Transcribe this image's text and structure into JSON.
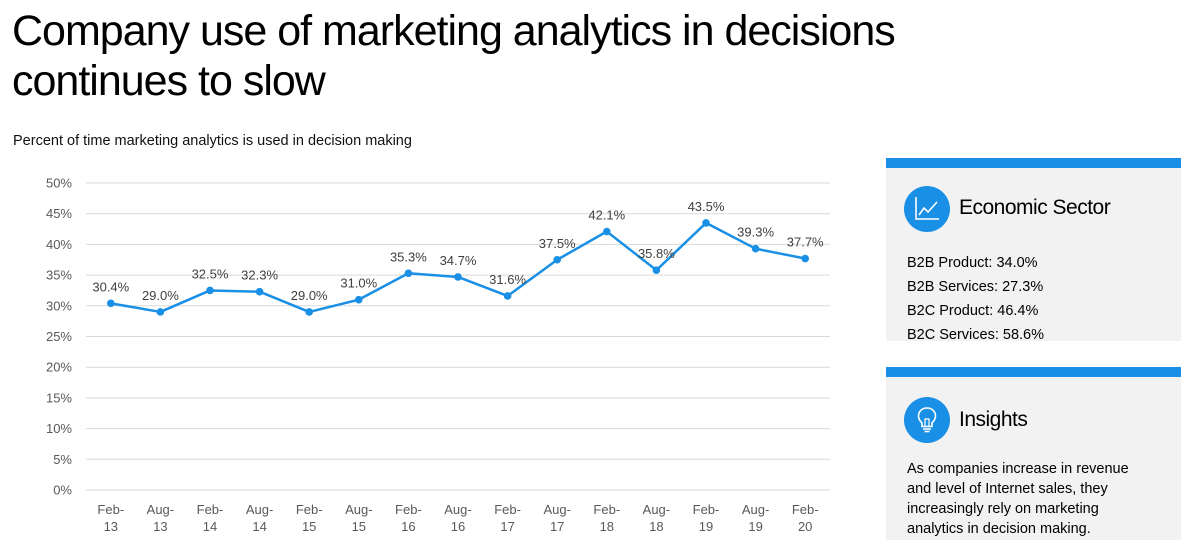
{
  "title": "Company use of marketing analytics in decisions continues to slow",
  "subtitle": "Percent of time marketing analytics is used in decision making",
  "chart_data": {
    "type": "line",
    "title": "Company use of marketing analytics in decisions continues to slow",
    "subtitle": "Percent of time marketing analytics is used in decision making",
    "xlabel": "",
    "ylabel": "",
    "categories": [
      [
        "Feb-",
        "13"
      ],
      [
        "Aug-",
        "13"
      ],
      [
        "Feb-",
        "14"
      ],
      [
        "Aug-",
        "14"
      ],
      [
        "Feb-",
        "15"
      ],
      [
        "Aug-",
        "15"
      ],
      [
        "Feb-",
        "16"
      ],
      [
        "Aug-",
        "16"
      ],
      [
        "Feb-",
        "17"
      ],
      [
        "Aug-",
        "17"
      ],
      [
        "Feb-",
        "18"
      ],
      [
        "Aug-",
        "18"
      ],
      [
        "Feb-",
        "19"
      ],
      [
        "Aug-",
        "19"
      ],
      [
        "Feb-",
        "20"
      ]
    ],
    "series": [
      {
        "values": [
          30.4,
          29.0,
          32.5,
          32.3,
          29.0,
          31.0,
          35.3,
          34.7,
          31.6,
          37.5,
          42.1,
          35.8,
          43.5,
          39.3,
          37.7
        ],
        "labels": [
          "30.4%",
          "29.0%",
          "32.5%",
          "32.3%",
          "29.0%",
          "31.0%",
          "35.3%",
          "34.7%",
          "31.6%",
          "37.5%",
          "42.1%",
          "35.8%",
          "43.5%",
          "39.3%",
          "37.7%"
        ],
        "color": "#1a8fe6"
      }
    ],
    "ylim": [
      0,
      50
    ],
    "yticks": [
      "0%",
      "5%",
      "10%",
      "15%",
      "20%",
      "25%",
      "30%",
      "35%",
      "40%",
      "45%",
      "50%"
    ],
    "grid": true,
    "legend": "none"
  },
  "panels": {
    "sector": {
      "heading": "Economic Sector",
      "icon": "line-chart-icon",
      "items": [
        "B2B Product: 34.0%",
        "B2B Services: 27.3%",
        "B2C Product: 46.4%",
        "B2C Services: 58.6%"
      ]
    },
    "insights": {
      "heading": "Insights",
      "icon": "lightbulb-icon",
      "text": "As companies increase in revenue and level of Internet sales, they increasingly rely on marketing analytics in decision making."
    }
  },
  "colors": {
    "accent": "#1a8fe6",
    "panel_bg": "#f2f2f2",
    "grid": "#d9d9d9",
    "axis_text": "#595959"
  }
}
